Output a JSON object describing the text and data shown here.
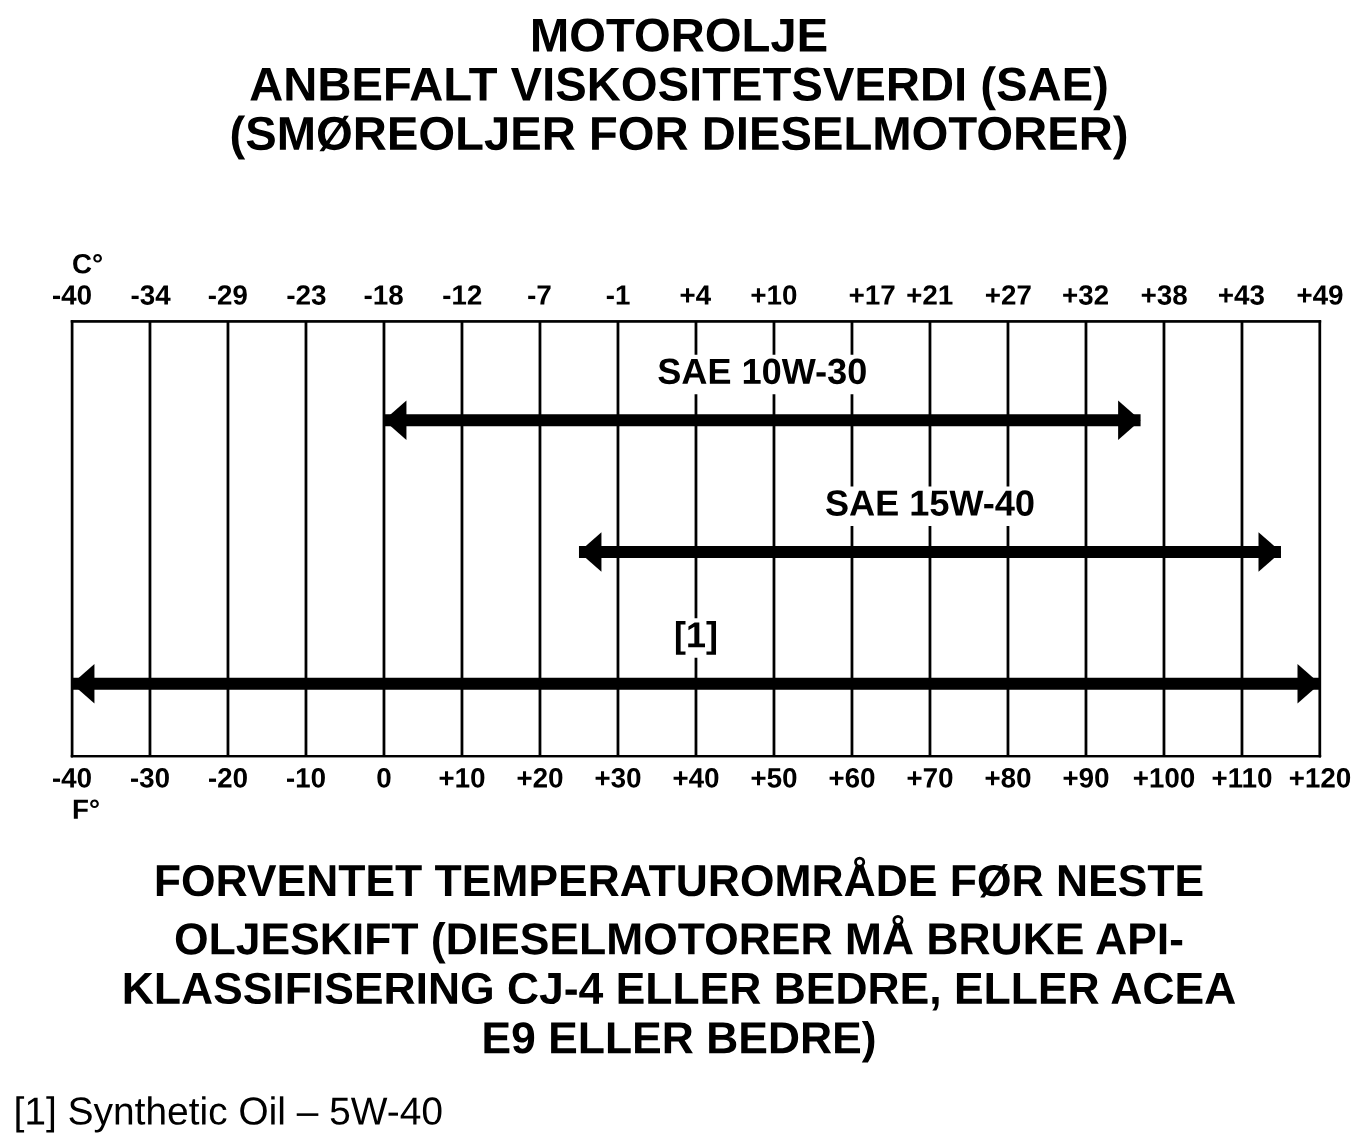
{
  "chart_data": {
    "type": "bar",
    "orientation": "horizontal",
    "title": "MOTOROLJE\nANBEFALT VISKOSITETSVERDI (SAE)\n(SMØREOLJER FOR DIESELMOTORER)",
    "categories": [
      "SAE 10W-30",
      "SAE 15W-40",
      "[1]"
    ],
    "base": [
      0,
      25,
      -40
    ],
    "values": [
      97,
      90,
      160
    ],
    "color": "#000000",
    "xlabel": "F°",
    "x2label": "C°",
    "xlim": [
      -40,
      120
    ],
    "xticks": [
      -40,
      -30,
      -20,
      -10,
      0,
      {
        "value": 10,
        "label": "+10"
      },
      {
        "value": 20,
        "label": "+20"
      },
      {
        "value": 30,
        "label": "+30"
      },
      {
        "value": 40,
        "label": "+40"
      },
      {
        "value": 50,
        "label": "+50"
      },
      {
        "value": 60,
        "label": "+60"
      },
      {
        "value": 70,
        "label": "+70"
      },
      {
        "value": 80,
        "label": "+80"
      },
      {
        "value": 90,
        "label": "+90"
      },
      {
        "value": 100,
        "label": "+100"
      },
      {
        "value": 110,
        "label": "+110"
      },
      {
        "value": 120,
        "label": "+120"
      }
    ],
    "x2lim": [
      -40,
      48.9
    ],
    "x2ticks": [
      -40,
      {
        "value": -34.4,
        "label": "-34"
      },
      {
        "value": -28.9,
        "label": "-29"
      },
      {
        "value": -23.3,
        "label": "-23"
      },
      {
        "value": -17.8,
        "label": "-18"
      },
      {
        "value": -12.2,
        "label": "-12"
      },
      {
        "value": -6.7,
        "label": "-7"
      },
      {
        "value": -1.1,
        "label": "-1"
      },
      {
        "value": 4.4,
        "label": "+4"
      },
      {
        "value": 10,
        "label": "+10"
      },
      {
        "value": 17,
        "label": "+17"
      },
      {
        "value": 21.1,
        "label": "+21"
      },
      {
        "value": 26.7,
        "label": "+27"
      },
      {
        "value": 32.2,
        "label": "+32"
      },
      {
        "value": 37.8,
        "label": "+38"
      },
      {
        "value": 43.3,
        "label": "+43"
      },
      {
        "value": 48.9,
        "label": "+49"
      }
    ],
    "grid": "x",
    "tick_labels": "x",
    "annotations": [
      "FORVENTET TEMPERATUROMRÅDE FØR NESTE\nOLJESKIFT (DIESELMOTORER MÅ BRUKE API-\nKLASSIFISERING CJ-4 ELLER BEDRE, ELLER ACEA\nE9 ELLER BEDRE)",
      "[1] Synthetic Oil – 5W-40"
    ]
  }
}
